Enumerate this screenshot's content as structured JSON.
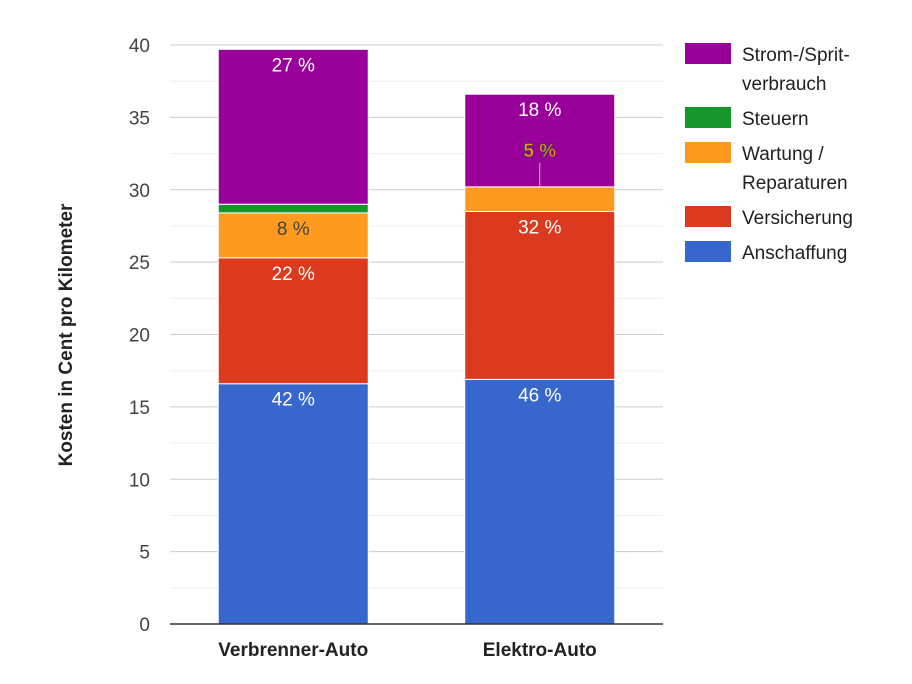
{
  "chart_data": {
    "type": "bar",
    "stacked": true,
    "title": "",
    "xlabel": "",
    "ylabel": "Kosten in Cent pro Kilometer",
    "ylim": [
      0,
      40
    ],
    "yticks": [
      0,
      5,
      10,
      15,
      20,
      25,
      30,
      35,
      40
    ],
    "ytick_labels": [
      "0",
      "5",
      "10",
      "15",
      "20",
      "25",
      "30",
      "35",
      "40"
    ],
    "minor_gridlines": true,
    "categories": [
      "Verbrenner-Auto",
      "Elektro-Auto"
    ],
    "series": [
      {
        "name": "Anschaffung",
        "color": "#3766cc",
        "values": [
          16.6,
          16.9
        ],
        "labels": [
          "42 %",
          "46 %"
        ],
        "label_color": "#ffffff"
      },
      {
        "name": "Versicherung",
        "color": "#db3a1e",
        "values": [
          8.7,
          11.6
        ],
        "labels": [
          "22 %",
          "32 %"
        ],
        "label_color": "#ffffff"
      },
      {
        "name": "Wartung / Reparaturen",
        "color": "#fe9b1f",
        "values": [
          3.1,
          1.7
        ],
        "labels": [
          "8 %",
          "5 %"
        ],
        "label_color": "#444444"
      },
      {
        "name": "Steuern",
        "color": "#14962a",
        "values": [
          0.6,
          0.0
        ],
        "labels": [
          "",
          ""
        ],
        "label_color": "#ffffff"
      },
      {
        "name": "Strom-/Sprit-verbrauch",
        "color": "#990099",
        "values": [
          10.7,
          6.4
        ],
        "labels": [
          "27 %",
          "18 %"
        ],
        "label_color": "#ffffff"
      }
    ],
    "legend": {
      "position": "right",
      "order": [
        "Strom-/Sprit-verbrauch",
        "Steuern",
        "Wartung / Reparaturen",
        "Versicherung",
        "Anschaffung"
      ],
      "entries": [
        {
          "lines": [
            "Strom-/Sprit-",
            "verbrauch"
          ],
          "color": "#990099"
        },
        {
          "lines": [
            "Steuern"
          ],
          "color": "#14962a"
        },
        {
          "lines": [
            "Wartung /",
            "Reparaturen"
          ],
          "color": "#fe9b1f"
        },
        {
          "lines": [
            "Versicherung"
          ],
          "color": "#db3a1e"
        },
        {
          "lines": [
            "Anschaffung"
          ],
          "color": "#3766cc"
        }
      ]
    }
  }
}
